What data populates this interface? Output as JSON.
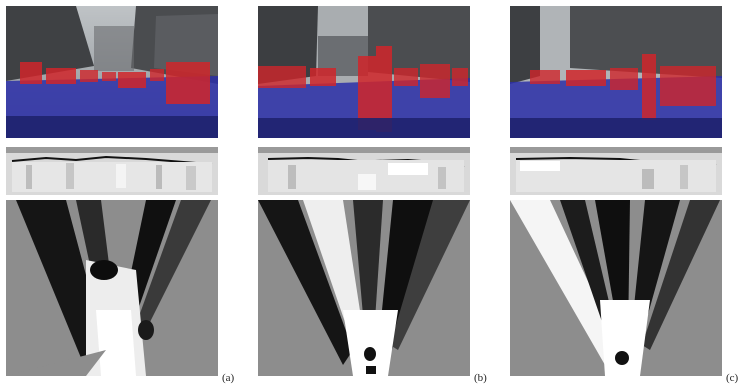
{
  "figure": {
    "subfigures": [
      {
        "id": "a",
        "label": "(a)"
      },
      {
        "id": "b",
        "label": "(b)"
      },
      {
        "id": "c",
        "label": "(c)"
      }
    ]
  },
  "colors": {
    "road_overlay": "#2b2fa8",
    "object_overlay": "#d0262a",
    "strip_bg": "#d9d9d9",
    "bev_bg": "#8d8d8d"
  }
}
